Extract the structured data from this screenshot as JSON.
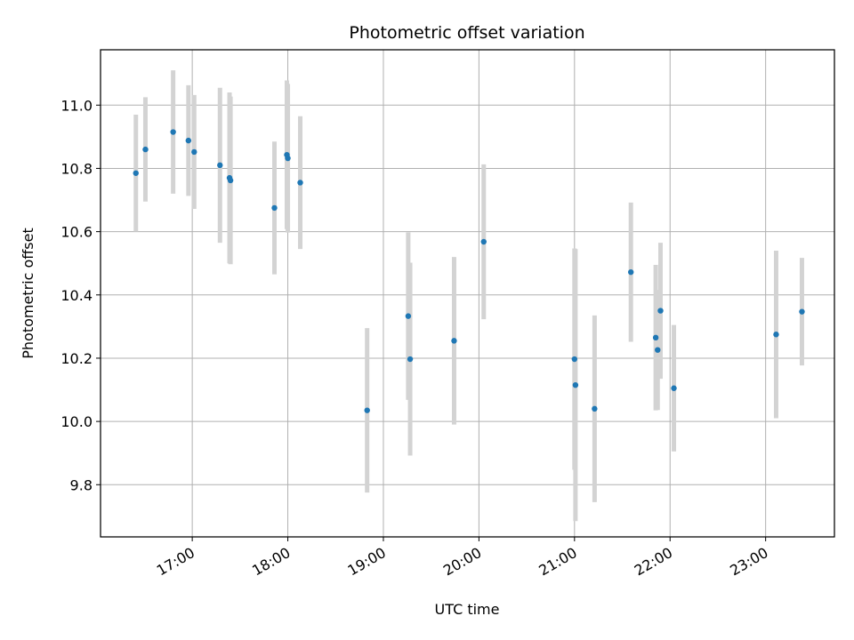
{
  "chart_data": {
    "type": "scatter",
    "title": "Photometric offset variation",
    "xlabel": "UTC time",
    "ylabel": "Photometric offset",
    "x_unit": "UTC hours",
    "xlim": [
      16.04,
      23.72
    ],
    "ylim": [
      9.635,
      11.175
    ],
    "x_ticks": [
      {
        "value": 17,
        "label": "17:00"
      },
      {
        "value": 18,
        "label": "18:00"
      },
      {
        "value": 19,
        "label": "19:00"
      },
      {
        "value": 20,
        "label": "20:00"
      },
      {
        "value": 21,
        "label": "21:00"
      },
      {
        "value": 22,
        "label": "22:00"
      },
      {
        "value": 23,
        "label": "23:00"
      }
    ],
    "y_ticks": [
      {
        "value": 9.8,
        "label": "9.8"
      },
      {
        "value": 10.0,
        "label": "10.0"
      },
      {
        "value": 10.2,
        "label": "10.2"
      },
      {
        "value": 10.4,
        "label": "10.4"
      },
      {
        "value": 10.6,
        "label": "10.6"
      },
      {
        "value": 10.8,
        "label": "10.8"
      },
      {
        "value": 11.0,
        "label": "11.0"
      }
    ],
    "grid": true,
    "point_color": "#1f77b4",
    "errorbar_color": "#d3d3d3",
    "points": [
      {
        "x": 16.41,
        "y": 10.785,
        "err": 0.185
      },
      {
        "x": 16.51,
        "y": 10.86,
        "err": 0.165
      },
      {
        "x": 16.8,
        "y": 10.915,
        "err": 0.195
      },
      {
        "x": 16.96,
        "y": 10.888,
        "err": 0.175
      },
      {
        "x": 17.02,
        "y": 10.852,
        "err": 0.18
      },
      {
        "x": 17.29,
        "y": 10.81,
        "err": 0.245
      },
      {
        "x": 17.39,
        "y": 10.77,
        "err": 0.27
      },
      {
        "x": 17.4,
        "y": 10.762,
        "err": 0.265
      },
      {
        "x": 17.86,
        "y": 10.675,
        "err": 0.21
      },
      {
        "x": 17.99,
        "y": 10.843,
        "err": 0.235
      },
      {
        "x": 18.0,
        "y": 10.832,
        "err": 0.235
      },
      {
        "x": 18.13,
        "y": 10.755,
        "err": 0.21
      },
      {
        "x": 18.83,
        "y": 10.035,
        "err": 0.26
      },
      {
        "x": 19.26,
        "y": 10.333,
        "err": 0.265
      },
      {
        "x": 19.28,
        "y": 10.197,
        "err": 0.305
      },
      {
        "x": 19.74,
        "y": 10.255,
        "err": 0.265
      },
      {
        "x": 20.05,
        "y": 10.568,
        "err": 0.245
      },
      {
        "x": 21.0,
        "y": 10.197,
        "err": 0.35
      },
      {
        "x": 21.01,
        "y": 10.115,
        "err": 0.43
      },
      {
        "x": 21.21,
        "y": 10.04,
        "err": 0.295
      },
      {
        "x": 21.59,
        "y": 10.472,
        "err": 0.22
      },
      {
        "x": 21.85,
        "y": 10.265,
        "err": 0.23
      },
      {
        "x": 21.87,
        "y": 10.226,
        "err": 0.19
      },
      {
        "x": 21.9,
        "y": 10.35,
        "err": 0.215
      },
      {
        "x": 22.04,
        "y": 10.105,
        "err": 0.2
      },
      {
        "x": 23.11,
        "y": 10.275,
        "err": 0.265
      },
      {
        "x": 23.38,
        "y": 10.347,
        "err": 0.17
      }
    ]
  }
}
